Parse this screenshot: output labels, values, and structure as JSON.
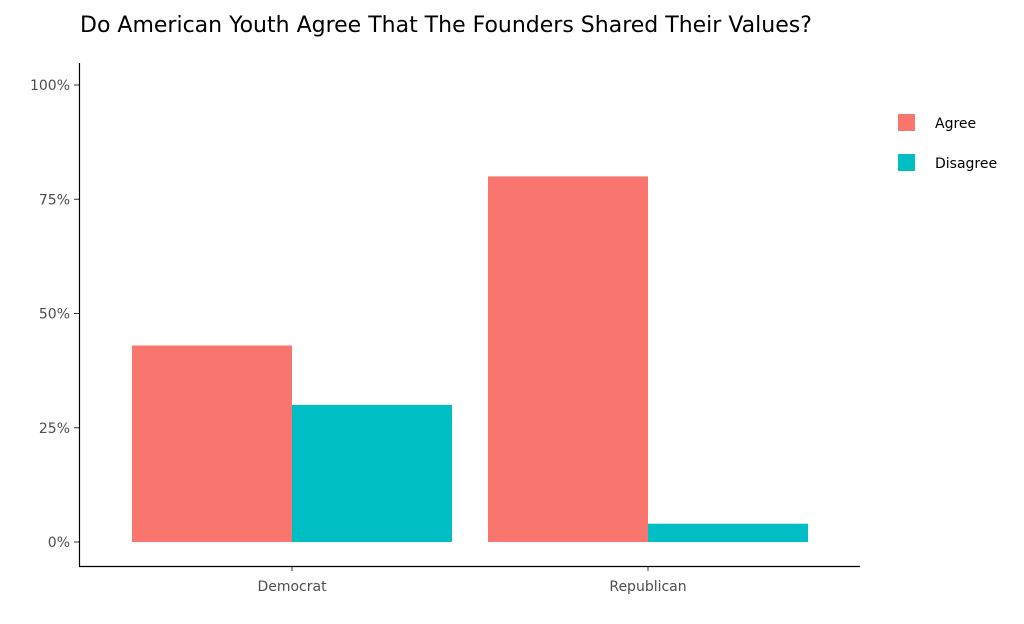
{
  "chart_data": {
    "type": "bar",
    "title": "Do American Youth Agree That The Founders Shared Their Values?",
    "xlabel": "",
    "ylabel": "",
    "categories": [
      "Democrat",
      "Republican"
    ],
    "series": [
      {
        "name": "Agree",
        "color": "#F8766D",
        "values": [
          43,
          80
        ]
      },
      {
        "name": "Disagree",
        "color": "#00BFC4",
        "values": [
          30,
          4
        ]
      }
    ],
    "ylim": [
      0,
      100
    ],
    "yticks": [
      0,
      25,
      50,
      75,
      100
    ],
    "ytick_labels": [
      "0%",
      "25%",
      "50%",
      "75%",
      "100%"
    ],
    "grid": false,
    "legend_position": "right"
  }
}
